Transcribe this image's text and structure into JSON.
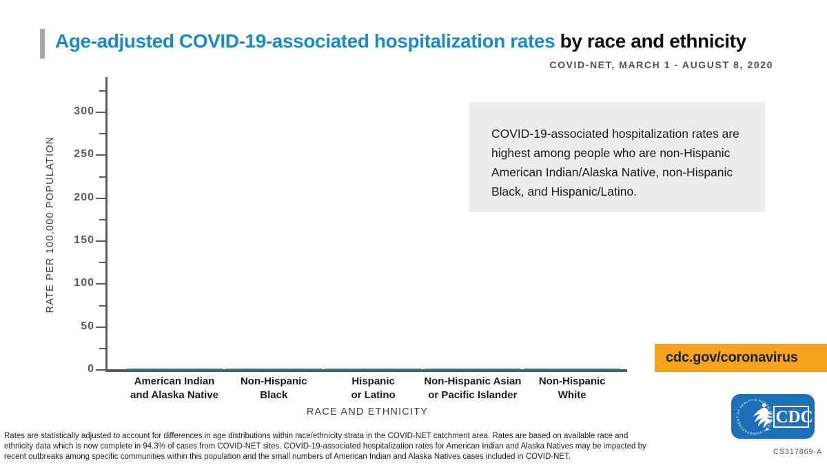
{
  "header": {
    "title_highlight": "Age-adjusted COVID-19-associated hospitalization rates",
    "title_rest": " by race and ethnicity",
    "subtitle": "COVID-NET, MARCH 1 - AUGUST 8, 2020"
  },
  "callout": {
    "text": "COVID-19-associated hospitalization rates are highest among people who are non-Hispanic American Indian/Alaska Native, non-Hispanic Black, and Hispanic/Latino."
  },
  "chart_data": {
    "type": "bar",
    "title": "Age-adjusted COVID-19-associated hospitalization rates by race and ethnicity",
    "subtitle": "COVID-NET, MARCH 1 - AUGUST 8, 2020",
    "categories": [
      "American Indian\nand Alaska Native",
      "Non-Hispanic\nBlack",
      "Hispanic\nor Latino",
      "Non-Hispanic Asian\nor Pacific Islander",
      "Non-Hispanic\nWhite"
    ],
    "values": [
      2,
      2,
      2,
      2,
      2
    ],
    "xlabel": "RACE AND ETHNICITY",
    "ylabel": "RATE PER 100,000 POPULATION",
    "ylim": [
      0,
      341
    ],
    "yticks": {
      "minor_step": 25,
      "major_step": 50,
      "minor_max": 325,
      "label_max": 300
    },
    "grid": false,
    "legend": null,
    "bar_color": "#2b8794"
  },
  "banner": {
    "url_label": "cdc.gov/coronavirus"
  },
  "logo": {
    "cdc_label": "CDC",
    "hhs_ring_text": "DEPARTMENT OF HEALTH & HUMAN SERVICES • USA"
  },
  "doc_code": "CS317869-A",
  "footnote": "Rates are statistically adjusted to account for differences in age distributions within race/ethnicity strata in the COVID-NET catchment area. Rates are based on available race and ethnicity data which is now complete in 94.3% of cases from COVID-NET sites. COVID-19-associated hospitalization rates for American Indian and Alaska Natives may be impacted by recent outbreaks among specific communities within this population and the small numbers of American Indian and Alaska Natives cases included in COVID-NET.",
  "colors": {
    "title_blue": "#1b8bc4",
    "accent_gray": "#a7a9ac",
    "axis_gray": "#58595b",
    "callout_bg": "#ececec",
    "banner_orange": "#f7a21c",
    "logo_blue": "#1d6fb8",
    "bar_teal": "#2b8794"
  }
}
